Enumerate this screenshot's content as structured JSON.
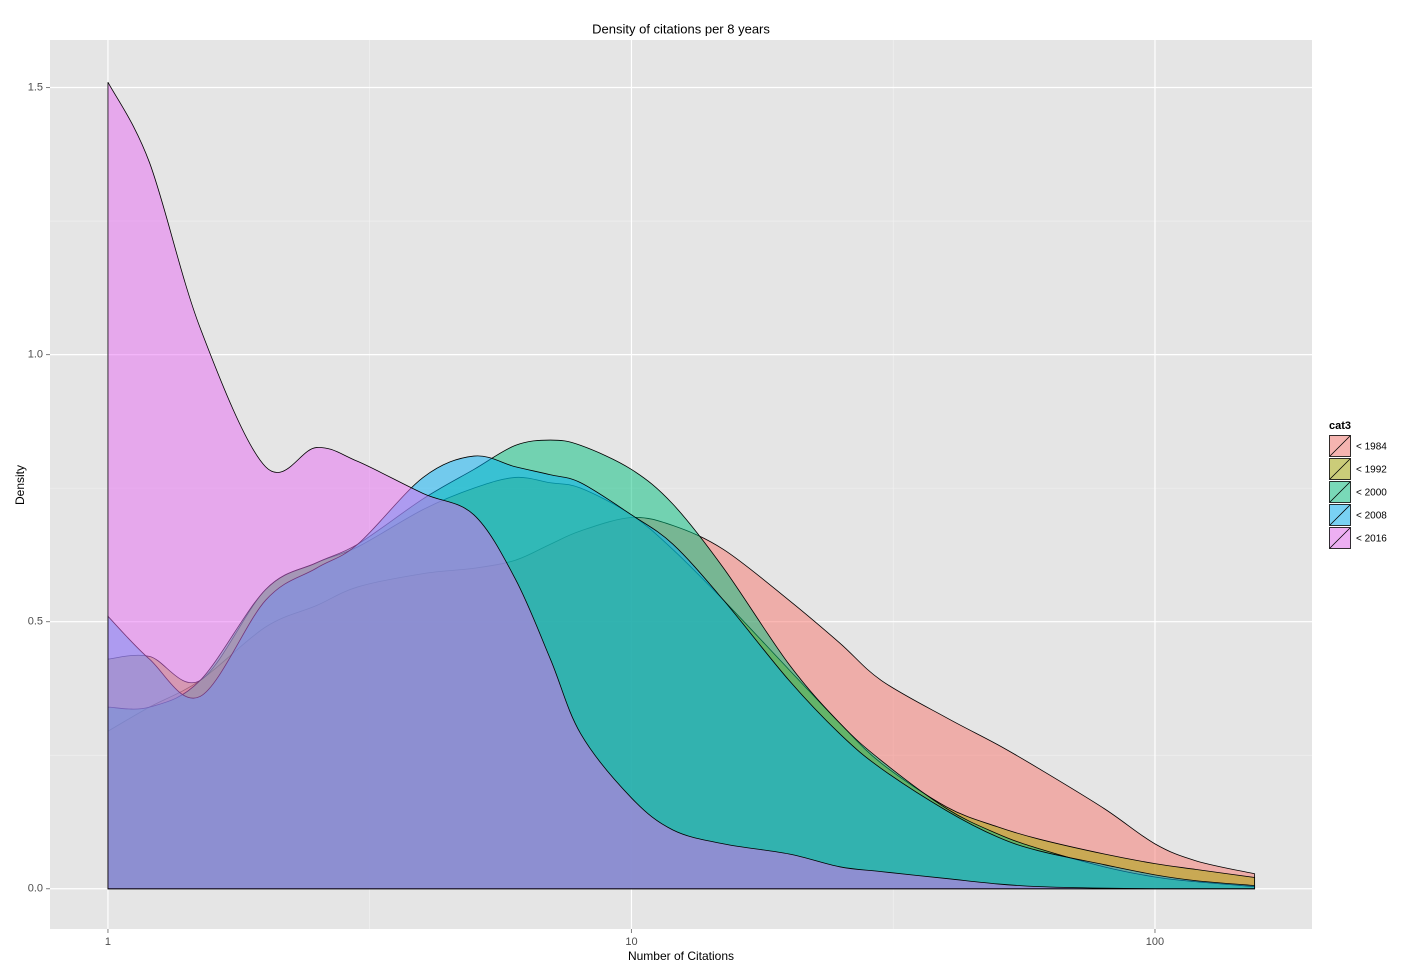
{
  "chart_data": {
    "type": "area",
    "title": "Density of citations per 8 years",
    "x_label": "Number of Citations",
    "y_label": "Density",
    "xscale": "log",
    "xlim": [
      0.775,
      199.5
    ],
    "ylim": [
      -0.0754,
      1.589
    ],
    "xticks": [
      1,
      10,
      100
    ],
    "minor_xticks": [
      3.162,
      31.62
    ],
    "yticks": [
      {
        "value": 0,
        "label": "0.0"
      },
      {
        "value": 0.5,
        "label": "0.5"
      },
      {
        "value": 1.0,
        "label": "1.0"
      },
      {
        "value": 1.5,
        "label": "1.5"
      }
    ],
    "minor_yticks": [
      0.25,
      0.75,
      1.25
    ],
    "grid": true,
    "legend_title": "cat3",
    "legend_position": "right",
    "opacity": 0.5,
    "x": [
      1,
      1.2,
      1.5,
      2,
      2.5,
      3,
      4,
      5,
      6,
      7,
      8,
      10,
      12,
      15,
      20,
      25,
      30,
      40,
      50,
      60,
      80,
      100,
      120,
      155
    ],
    "series": [
      {
        "name": "< 1984",
        "color": "#F8766D",
        "values": [
          0.295,
          0.34,
          0.39,
          0.49,
          0.53,
          0.565,
          0.59,
          0.6,
          0.615,
          0.645,
          0.67,
          0.695,
          0.68,
          0.635,
          0.54,
          0.46,
          0.39,
          0.32,
          0.27,
          0.225,
          0.15,
          0.084,
          0.052,
          0.028
        ]
      },
      {
        "name": "< 1992",
        "color": "#A3A500",
        "values": [
          0.43,
          0.435,
          0.39,
          0.56,
          0.61,
          0.64,
          0.71,
          0.75,
          0.77,
          0.76,
          0.75,
          0.7,
          0.635,
          0.54,
          0.41,
          0.31,
          0.235,
          0.153,
          0.116,
          0.093,
          0.065,
          0.047,
          0.036,
          0.021
        ]
      },
      {
        "name": "< 2000",
        "color": "#00BF7D",
        "values": [
          0.34,
          0.34,
          0.39,
          0.56,
          0.61,
          0.645,
          0.73,
          0.785,
          0.83,
          0.84,
          0.83,
          0.785,
          0.72,
          0.6,
          0.42,
          0.31,
          0.24,
          0.15,
          0.103,
          0.075,
          0.041,
          0.022,
          0.013,
          0.004
        ]
      },
      {
        "name": "< 2008",
        "color": "#00B0F6",
        "values": [
          0.51,
          0.43,
          0.36,
          0.54,
          0.6,
          0.645,
          0.77,
          0.81,
          0.79,
          0.775,
          0.76,
          0.7,
          0.645,
          0.54,
          0.39,
          0.29,
          0.225,
          0.146,
          0.097,
          0.071,
          0.045,
          0.026,
          0.015,
          0.006
        ]
      },
      {
        "name": "< 2016",
        "color": "#E76BF3",
        "values": [
          1.51,
          1.36,
          1.05,
          0.79,
          0.826,
          0.8,
          0.74,
          0.7,
          0.58,
          0.43,
          0.29,
          0.17,
          0.11,
          0.084,
          0.065,
          0.041,
          0.032,
          0.019,
          0.009,
          0.004,
          0.001,
          0,
          0,
          0
        ]
      }
    ]
  }
}
